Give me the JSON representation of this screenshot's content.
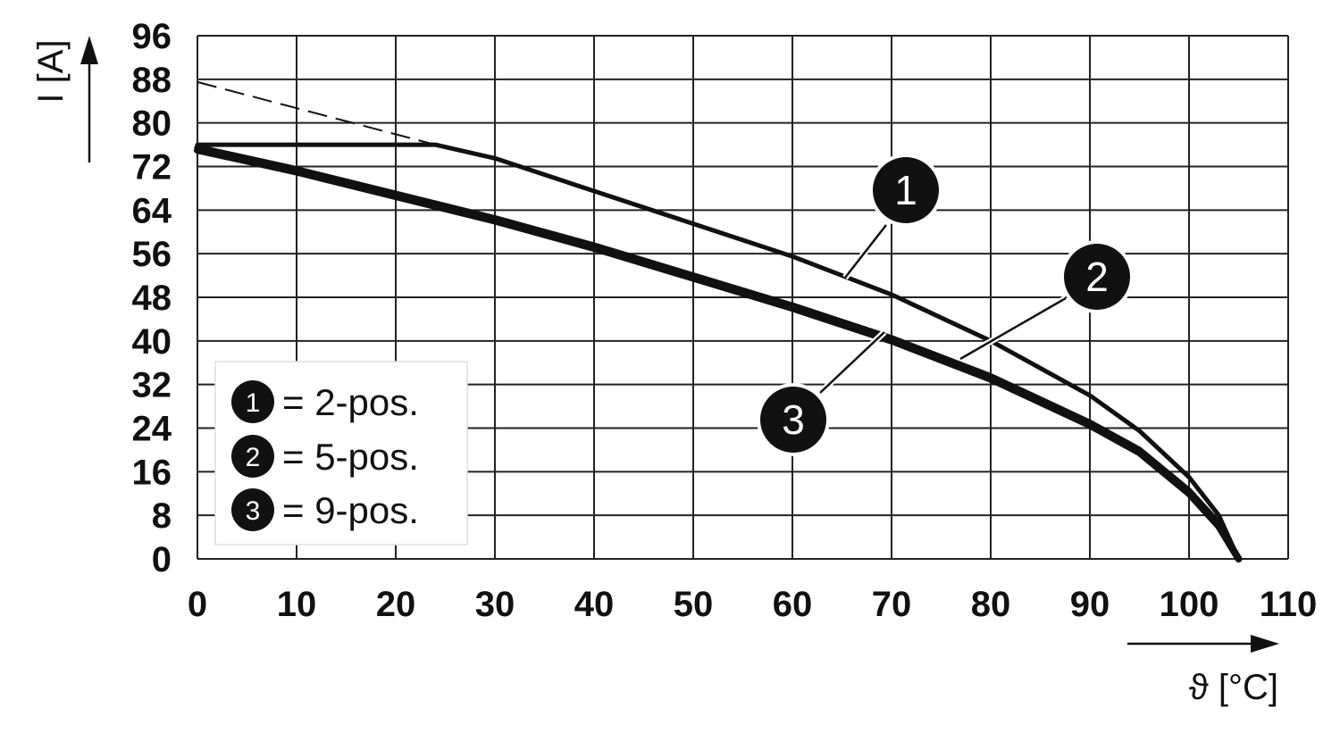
{
  "chart_data": {
    "type": "line",
    "xlabel": "ϑ [°C]",
    "ylabel": "I [A]",
    "xlim": [
      0,
      110
    ],
    "ylim": [
      0,
      96
    ],
    "xticks": [
      "0",
      "10",
      "20",
      "30",
      "40",
      "50",
      "60",
      "70",
      "80",
      "90",
      "100",
      "110"
    ],
    "yticks": [
      "0",
      "8",
      "16",
      "24",
      "32",
      "40",
      "48",
      "56",
      "64",
      "72",
      "80",
      "88",
      "96"
    ],
    "grid": true,
    "legend_position": "bottom-left",
    "legend": [
      {
        "id": "1",
        "text": "= 2-pos."
      },
      {
        "id": "2",
        "text": "= 5-pos."
      },
      {
        "id": "3",
        "text": "= 9-pos."
      }
    ],
    "series": [
      {
        "id": "1",
        "x": [
          0,
          24,
          30,
          40,
          50,
          60,
          70,
          80,
          90,
          95,
          100,
          103,
          105
        ],
        "y": [
          76,
          76,
          73.5,
          67.5,
          61.5,
          55.5,
          48.5,
          40,
          30,
          23.5,
          15,
          8,
          0
        ]
      },
      {
        "id": "2",
        "x": [
          0,
          10,
          20,
          30,
          40,
          50,
          60,
          70,
          80,
          90,
          95,
          100,
          103,
          105
        ],
        "y": [
          75.5,
          71.5,
          67,
          62.5,
          57.5,
          52,
          46.5,
          40.5,
          33.5,
          25,
          20,
          12.5,
          6.5,
          0
        ]
      },
      {
        "id": "3",
        "x": [
          0,
          10,
          20,
          30,
          40,
          50,
          60,
          70,
          80,
          90,
          95,
          100,
          103,
          105
        ],
        "y": [
          75,
          71,
          66.5,
          62,
          57,
          51.5,
          46,
          40,
          33,
          24.5,
          19.5,
          12,
          6,
          0
        ]
      }
    ],
    "extrapolation": {
      "style": "dashed",
      "x": [
        0,
        24
      ],
      "y": [
        87.5,
        76
      ]
    },
    "callouts": [
      {
        "id": "1",
        "points_to_series": "1"
      },
      {
        "id": "2",
        "points_to_series": "2"
      },
      {
        "id": "3",
        "points_to_series": "3"
      }
    ]
  }
}
